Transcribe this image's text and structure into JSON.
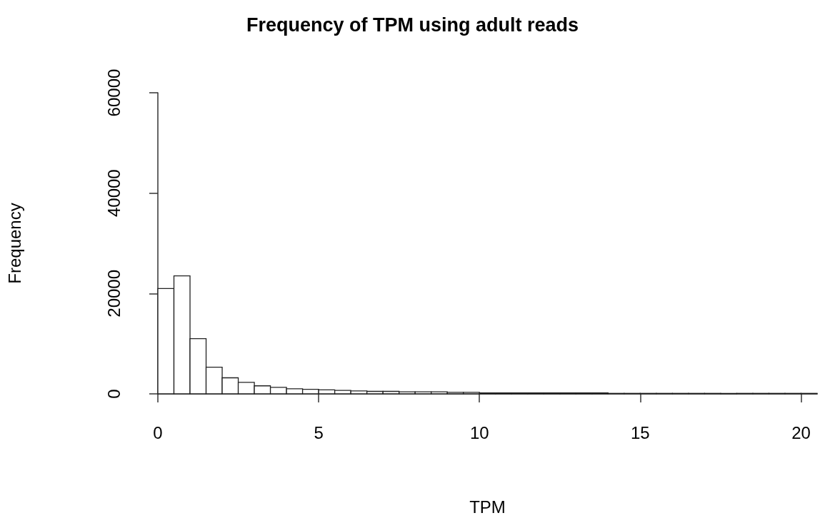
{
  "chart_data": {
    "type": "histogram",
    "title": "Frequency of TPM using adult reads",
    "xlabel": "TPM",
    "ylabel": "Frequency",
    "bins": [
      0,
      0.5,
      1,
      1.5,
      2,
      2.5,
      3,
      3.5,
      4,
      4.5,
      5,
      5.5,
      6,
      6.5,
      7,
      7.5,
      8,
      8.5,
      9,
      9.5,
      10,
      10.5,
      11,
      11.5,
      12,
      12.5,
      13,
      13.5,
      14,
      14.5,
      15,
      15.5,
      16,
      16.5,
      17,
      17.5,
      18,
      18.5,
      19,
      19.5,
      20,
      20.5
    ],
    "values": [
      21000,
      23500,
      11000,
      5300,
      3200,
      2300,
      1600,
      1300,
      1000,
      900,
      800,
      700,
      600,
      500,
      500,
      400,
      400,
      400,
      300,
      300,
      200,
      200,
      200,
      200,
      200,
      200,
      200,
      200,
      100,
      100,
      100,
      100,
      100,
      100,
      100,
      100,
      100,
      100,
      100,
      100,
      100
    ],
    "color": "#ffffff",
    "xlim": [
      0,
      20.5
    ],
    "xticks": [
      0,
      5,
      10,
      15,
      20
    ],
    "ylim": [
      0,
      60000
    ],
    "yticks": [
      0,
      20000,
      40000,
      60000
    ],
    "grid": false
  }
}
